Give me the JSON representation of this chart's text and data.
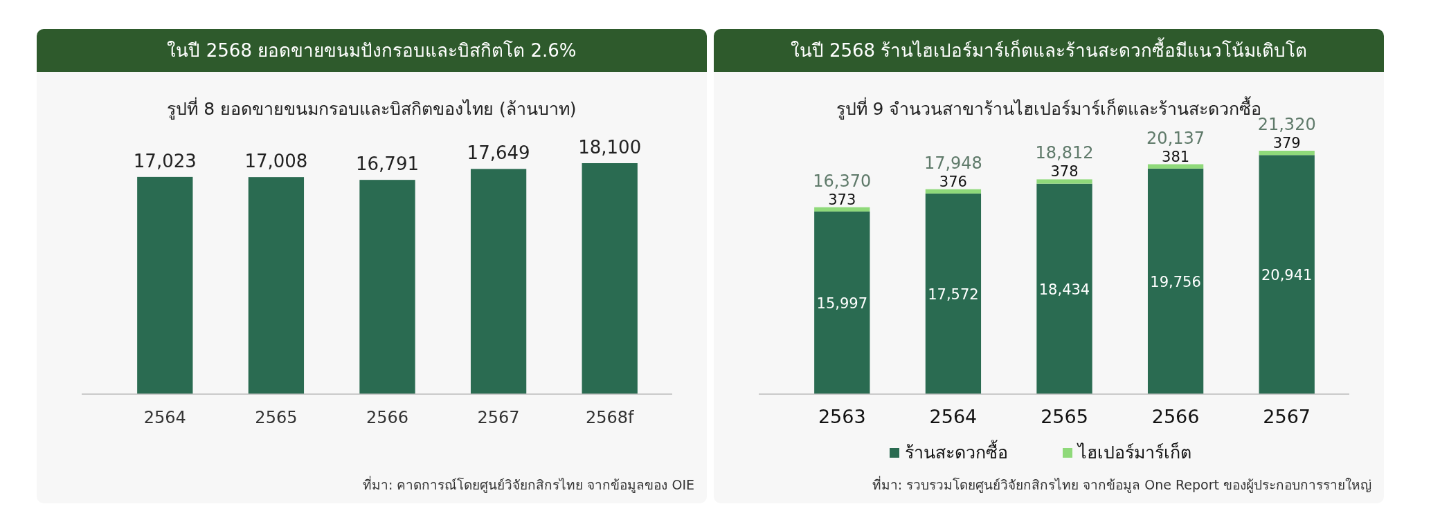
{
  "chart_data": [
    {
      "type": "bar",
      "title": "ในปี 2568 ยอดขายขนมปังกรอบและบิสกิตโต 2.6%",
      "subtitle": "รูปที่ 8 ยอดขายขนมกรอบและบิสกิตของไทย (ล้านบาท)",
      "categories": [
        "2564",
        "2565",
        "2566",
        "2567",
        "2568f"
      ],
      "values": [
        17023,
        17008,
        16791,
        17649,
        18100
      ],
      "value_labels": [
        "17,023",
        "17,008",
        "16,791",
        "17,649",
        "18,100"
      ],
      "color": "#2a6b51",
      "annotations": [
        "ที่มา: คาดการณ์โดยศูนย์วิจัยกสิกรไทย จากข้อมูลของ OIE"
      ]
    },
    {
      "type": "bar",
      "title": "ในปี 2568 ร้านไฮเปอร์มาร์เก็ตและร้านสะดวกซื้อมีแนวโน้มเติบโต",
      "subtitle": "รูปที่ 9 จำนวนสาขาร้านไฮเปอร์มาร์เก็ตและร้านสะดวกซื้อ",
      "categories": [
        "2563",
        "2564",
        "2565",
        "2566",
        "2567"
      ],
      "stacked": true,
      "legend": "bottom",
      "series": [
        {
          "name": "ร้านสะดวกซื้อ",
          "color": "#2a6b51",
          "values": [
            15997,
            17572,
            18434,
            19756,
            20941
          ],
          "value_labels": [
            "15,997",
            "17,572",
            "18,434",
            "19,756",
            "20,941"
          ]
        },
        {
          "name": "ไฮเปอร์มาร์เก็ต",
          "color": "#8fd97a",
          "values": [
            373,
            376,
            378,
            381,
            379
          ],
          "value_labels": [
            "373",
            "376",
            "378",
            "381",
            "379"
          ]
        }
      ],
      "totals": [
        "16,370",
        "17,948",
        "18,812",
        "20,137",
        "21,320"
      ],
      "annotations": [
        "ที่มา: รวบรวมโดยศูนย์วิจัยกสิกรไทย จากข้อมูล One Report ของผู้ประกอบการรายใหญ่"
      ]
    }
  ]
}
